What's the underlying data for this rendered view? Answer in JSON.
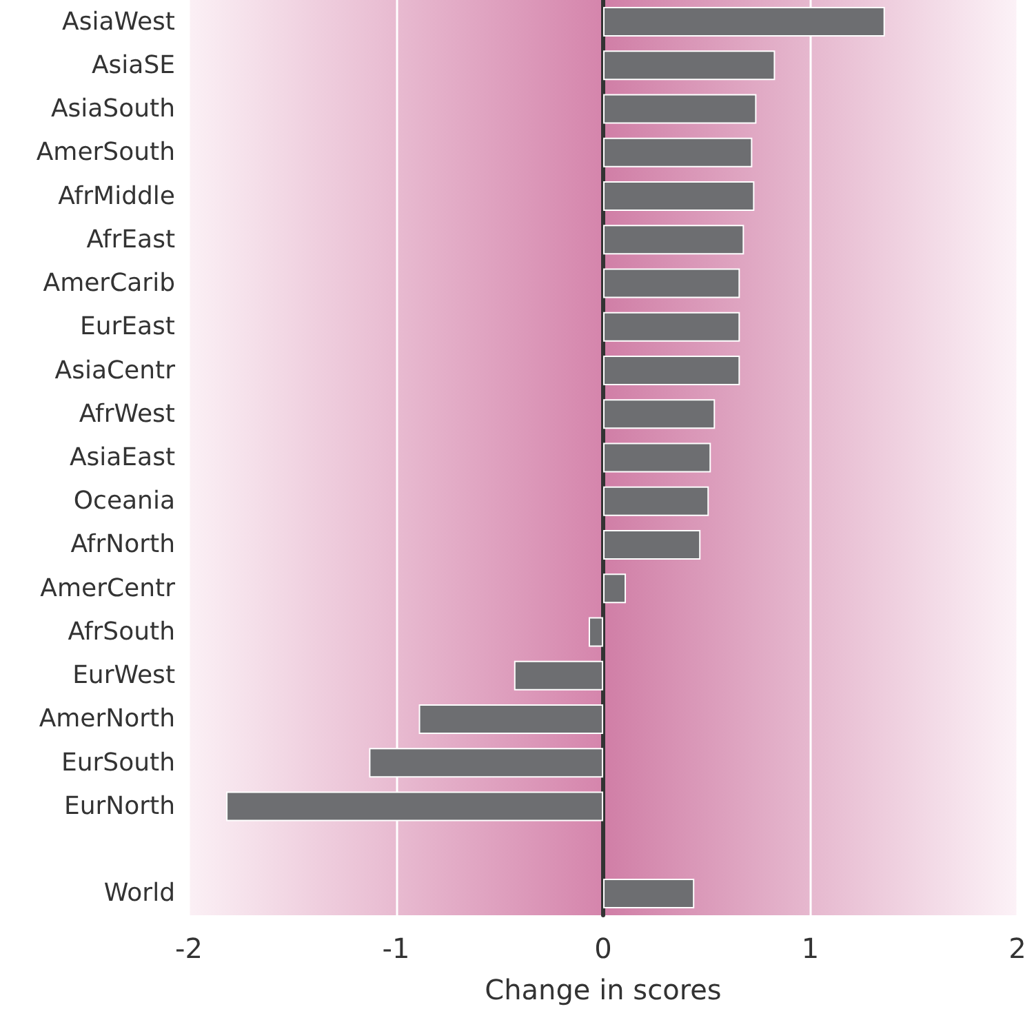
{
  "chart_data": {
    "type": "bar",
    "orientation": "horizontal",
    "xlabel": "Change in scores",
    "categories": [
      "AsiaWest",
      "AsiaSE",
      "AsiaSouth",
      "AmerSouth",
      "AfrMiddle",
      "AfrEast",
      "AmerCarib",
      "EurEast",
      "AsiaCentr",
      "AfrWest",
      "AsiaEast",
      "Oceania",
      "AfrNorth",
      "AmerCentr",
      "AfrSouth",
      "EurWest",
      "AmerNorth",
      "EurSouth",
      "EurNorth",
      null,
      "World"
    ],
    "values": [
      1.36,
      0.83,
      0.74,
      0.72,
      0.73,
      0.68,
      0.66,
      0.66,
      0.66,
      0.54,
      0.52,
      0.51,
      0.47,
      0.11,
      -0.07,
      -0.43,
      -0.89,
      -1.13,
      -1.82,
      null,
      0.44
    ],
    "color": "#6d6e71",
    "xlim": [
      -2,
      2
    ],
    "xticks": [
      -2,
      -1,
      0,
      1,
      2
    ],
    "grid": "x"
  }
}
